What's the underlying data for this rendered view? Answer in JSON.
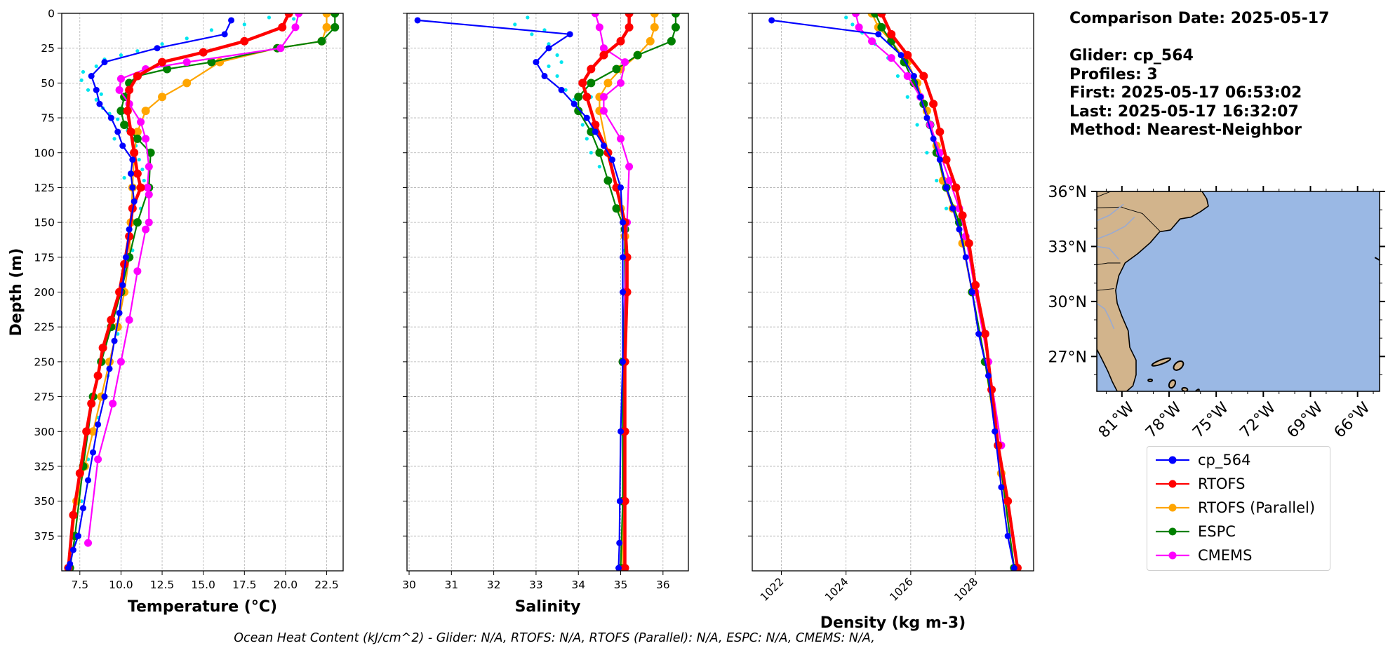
{
  "info": {
    "comparison_date": "Comparison Date: 2025-05-17",
    "glider": "Glider: cp_564",
    "profiles": "Profiles: 3",
    "first": "First: 2025-05-17 06:53:02",
    "last": "Last: 2025-05-17 16:32:07",
    "method": "Method: Nearest-Neighbor"
  },
  "footer": "Ocean Heat Content (kJ/cm^2) - Glider: N/A,  RTOFS: N/A,  RTOFS (Parallel): N/A,  ESPC: N/A,  CMEMS: N/A,",
  "colors": {
    "glider_obs": "#00e5ee",
    "cp_564": "#0000ff",
    "RTOFS": "#ff0000",
    "RTOFS (Parallel)": "#ffa500",
    "ESPC": "#008000",
    "CMEMS": "#ff00ff",
    "land": "#d2b48c",
    "ocean": "#9ab8e4"
  },
  "legend": [
    "cp_564",
    "RTOFS",
    "RTOFS (Parallel)",
    "ESPC",
    "CMEMS"
  ],
  "chart_data": [
    {
      "type": "line",
      "xlabel": "Temperature (°C)",
      "ylabel": "Depth (m)",
      "xlim": [
        6.4,
        23.5
      ],
      "ylim": [
        400,
        0
      ],
      "xticks": [
        7.5,
        10.0,
        12.5,
        15.0,
        17.5,
        20.0,
        22.5
      ],
      "xtick_labels": [
        "7.5",
        "10.0",
        "12.5",
        "15.0",
        "17.5",
        "20.0",
        "22.5"
      ],
      "yticks": [
        0,
        25,
        50,
        75,
        100,
        125,
        150,
        175,
        200,
        225,
        250,
        275,
        300,
        325,
        350,
        375
      ],
      "grid": true,
      "series": [
        {
          "name": "cp_564",
          "x": [
            16.7,
            16.3,
            12.2,
            9.0,
            8.2,
            8.5,
            8.7,
            9.4,
            9.8,
            10.1,
            10.7,
            10.6,
            10.7,
            10.8,
            10.5,
            10.3,
            10.1,
            9.9,
            9.6,
            9.3,
            9.0,
            8.6,
            8.3,
            8.0,
            7.7,
            7.4,
            7.1,
            6.9,
            6.8
          ],
          "y": [
            5,
            15,
            25,
            35,
            45,
            55,
            65,
            75,
            85,
            95,
            105,
            115,
            125,
            135,
            155,
            175,
            195,
            215,
            235,
            255,
            275,
            295,
            315,
            335,
            355,
            375,
            385,
            395,
            398
          ]
        },
        {
          "name": "RTOFS",
          "x": [
            20.2,
            19.8,
            17.5,
            15.0,
            12.5,
            11.0,
            10.5,
            10.4,
            10.6,
            10.8,
            11.0,
            11.2,
            10.7,
            10.5,
            10.2,
            9.9,
            9.4,
            8.9,
            8.6,
            8.2,
            7.9,
            7.5,
            7.1,
            6.8
          ],
          "y": [
            0,
            10,
            20,
            28,
            35,
            45,
            55,
            70,
            85,
            100,
            115,
            125,
            140,
            160,
            180,
            200,
            220,
            240,
            260,
            280,
            300,
            330,
            360,
            398
          ]
        },
        {
          "name": "RTOFS (Parallel)",
          "x": [
            22.5,
            22.5,
            22.2,
            19.5,
            16.0,
            14.0,
            12.5,
            11.5,
            11.0,
            10.8,
            10.7,
            10.6,
            10.5,
            10.2,
            9.8,
            9.3,
            8.8,
            8.3,
            7.8,
            7.3,
            6.8
          ],
          "y": [
            0,
            10,
            20,
            25,
            35,
            50,
            60,
            70,
            85,
            100,
            125,
            150,
            175,
            200,
            225,
            250,
            275,
            300,
            325,
            350,
            398
          ]
        },
        {
          "name": "ESPC",
          "x": [
            23.0,
            23.0,
            22.2,
            19.5,
            15.5,
            12.8,
            11.0,
            10.5,
            10.2,
            10.0,
            10.2,
            11.0,
            11.8,
            11.7,
            11.0,
            10.5,
            10.0,
            9.4,
            8.8,
            8.3,
            7.7,
            7.2,
            6.9
          ],
          "y": [
            0,
            10,
            20,
            25,
            35,
            40,
            45,
            50,
            60,
            70,
            80,
            90,
            100,
            125,
            150,
            175,
            200,
            225,
            250,
            275,
            325,
            375,
            398
          ]
        },
        {
          "name": "CMEMS",
          "x": [
            20.8,
            20.6,
            19.7,
            14.0,
            11.5,
            10.0,
            9.9,
            10.5,
            11.2,
            11.5,
            11.7,
            11.6,
            11.7,
            11.7,
            11.5,
            11.0,
            10.5,
            10.0,
            9.5,
            8.6,
            8.0
          ],
          "y": [
            0,
            10,
            25,
            35,
            40,
            47,
            55,
            65,
            78,
            90,
            110,
            125,
            130,
            150,
            155,
            185,
            220,
            250,
            280,
            320,
            380
          ]
        }
      ],
      "observations": {
        "name": "glider_obs",
        "x": [
          19.0,
          20.5,
          17.5,
          15.5,
          14.0,
          12.5,
          11.0,
          10.0,
          9.0,
          8.5,
          7.7,
          7.6,
          8.0,
          8.5,
          8.9,
          9.3,
          9.8,
          10.4,
          10.9,
          11.1,
          11.3,
          11.4,
          11.2,
          10.7,
          10.3,
          9.8,
          9.2,
          8.6,
          8.0,
          7.6,
          7.2,
          8.8,
          9.6,
          10.2
        ],
        "y": [
          3,
          4,
          8,
          12,
          18,
          22,
          27,
          30,
          33,
          38,
          42,
          48,
          55,
          62,
          68,
          72,
          76,
          84,
          95,
          105,
          112,
          120,
          140,
          170,
          200,
          230,
          260,
          290,
          320,
          350,
          380,
          58,
          90,
          118
        ]
      }
    },
    {
      "type": "line",
      "xlabel": "Salinity",
      "xlim": [
        29.95,
        36.6
      ],
      "ylim": [
        400,
        0
      ],
      "xticks": [
        30,
        31,
        32,
        33,
        34,
        35,
        36
      ],
      "xtick_labels": [
        "30",
        "31",
        "32",
        "33",
        "34",
        "35",
        "36"
      ],
      "grid": true,
      "series": [
        {
          "name": "cp_564",
          "x": [
            30.2,
            33.8,
            33.3,
            33.0,
            33.2,
            33.6,
            33.9,
            34.2,
            34.4,
            34.6,
            34.8,
            35.0,
            35.05,
            35.05,
            35.05,
            35.05,
            35.0,
            34.98,
            34.97,
            34.95
          ],
          "y": [
            5,
            15,
            25,
            35,
            45,
            55,
            65,
            75,
            85,
            95,
            105,
            125,
            150,
            175,
            200,
            250,
            300,
            350,
            380,
            398
          ]
        },
        {
          "name": "RTOFS",
          "x": [
            35.2,
            35.2,
            35.0,
            34.6,
            34.3,
            34.1,
            34.2,
            34.4,
            34.7,
            34.9,
            35.1,
            35.15,
            35.15,
            35.1,
            35.1,
            35.1,
            35.1
          ],
          "y": [
            0,
            10,
            20,
            30,
            40,
            50,
            60,
            80,
            100,
            125,
            150,
            175,
            200,
            250,
            300,
            350,
            398
          ]
        },
        {
          "name": "RTOFS (Parallel)",
          "x": [
            35.8,
            35.8,
            35.7,
            35.4,
            35.0,
            34.7,
            34.5,
            34.5,
            34.7,
            35.0,
            35.1,
            35.1,
            35.05,
            35.05,
            35.05
          ],
          "y": [
            0,
            10,
            20,
            30,
            40,
            50,
            60,
            70,
            100,
            140,
            160,
            200,
            250,
            300,
            398
          ]
        },
        {
          "name": "ESPC",
          "x": [
            36.3,
            36.3,
            36.2,
            35.4,
            34.9,
            34.3,
            34.0,
            34.0,
            34.3,
            34.5,
            34.7,
            34.9,
            35.1,
            35.1,
            35.05,
            35.05,
            35.0
          ],
          "y": [
            0,
            10,
            20,
            30,
            40,
            50,
            60,
            70,
            85,
            100,
            120,
            140,
            155,
            200,
            250,
            350,
            398
          ]
        },
        {
          "name": "CMEMS",
          "x": [
            34.4,
            34.5,
            34.6,
            35.1,
            35.0,
            34.6,
            34.6,
            35.0,
            35.2,
            35.15,
            35.1,
            35.1,
            35.1,
            35.1
          ],
          "y": [
            0,
            10,
            25,
            35,
            50,
            60,
            70,
            90,
            110,
            150,
            200,
            250,
            300,
            398
          ]
        }
      ],
      "observations": {
        "name": "glider_obs",
        "x": [
          32.8,
          32.5,
          32.9,
          33.3,
          33.5,
          33.3,
          33.5,
          33.7,
          33.9,
          34.0,
          34.1,
          34.2,
          34.3,
          34.5,
          34.7,
          35.0,
          35.1,
          35.2,
          35.1,
          33.2,
          33.6,
          34.3
        ],
        "y": [
          3,
          8,
          15,
          22,
          30,
          38,
          45,
          55,
          62,
          70,
          80,
          90,
          100,
          110,
          120,
          140,
          170,
          200,
          220,
          12,
          35,
          60
        ]
      }
    },
    {
      "type": "line",
      "xlabel": "Density (kg m-3)",
      "xlim": [
        1021.1,
        1029.8
      ],
      "ylim": [
        400,
        0
      ],
      "xticks": [
        1022,
        1024,
        1026,
        1028
      ],
      "xtick_labels": [
        "1022",
        "1024",
        "1026",
        "1028"
      ],
      "grid": true,
      "series": [
        {
          "name": "cp_564",
          "x": [
            1021.7,
            1025.0,
            1025.7,
            1026.1,
            1026.3,
            1026.5,
            1026.7,
            1026.9,
            1027.1,
            1027.3,
            1027.5,
            1027.7,
            1027.9,
            1028.1,
            1028.4,
            1028.6,
            1028.8,
            1029.0,
            1029.2
          ],
          "y": [
            5,
            15,
            30,
            45,
            60,
            75,
            90,
            105,
            125,
            140,
            155,
            175,
            200,
            230,
            260,
            300,
            340,
            375,
            398
          ]
        },
        {
          "name": "RTOFS",
          "x": [
            1025.1,
            1025.4,
            1025.9,
            1026.4,
            1026.7,
            1026.9,
            1027.1,
            1027.4,
            1027.6,
            1027.8,
            1028.0,
            1028.3,
            1028.5,
            1028.7,
            1029.0,
            1029.3
          ],
          "y": [
            0,
            15,
            30,
            45,
            65,
            85,
            105,
            125,
            145,
            165,
            195,
            230,
            270,
            310,
            350,
            398
          ]
        },
        {
          "name": "RTOFS (Parallel)",
          "x": [
            1024.8,
            1025.0,
            1025.4,
            1025.9,
            1026.2,
            1026.5,
            1026.8,
            1027.0,
            1027.3,
            1027.6,
            1027.9,
            1028.3,
            1028.8,
            1029.2
          ],
          "y": [
            0,
            10,
            20,
            35,
            50,
            70,
            95,
            120,
            140,
            165,
            200,
            250,
            330,
            398
          ]
        },
        {
          "name": "ESPC",
          "x": [
            1024.9,
            1025.1,
            1025.4,
            1025.8,
            1026.1,
            1026.4,
            1026.6,
            1026.8,
            1027.1,
            1027.5,
            1027.9,
            1028.3,
            1028.7,
            1029.2
          ],
          "y": [
            0,
            10,
            20,
            35,
            50,
            65,
            80,
            100,
            125,
            150,
            200,
            250,
            310,
            398
          ]
        },
        {
          "name": "CMEMS",
          "x": [
            1024.3,
            1024.4,
            1024.8,
            1025.4,
            1025.9,
            1026.3,
            1026.6,
            1026.9,
            1027.2,
            1027.5,
            1027.7,
            1028.0,
            1028.4,
            1028.8
          ],
          "y": [
            0,
            10,
            20,
            32,
            45,
            60,
            80,
            100,
            120,
            140,
            160,
            200,
            250,
            310
          ]
        }
      ],
      "observations": {
        "name": "glider_obs",
        "x": [
          1024.0,
          1024.2,
          1024.5,
          1024.9,
          1025.3,
          1025.6,
          1025.9,
          1026.2,
          1026.5,
          1026.8,
          1027.1
        ],
        "y": [
          3,
          8,
          14,
          22,
          32,
          45,
          60,
          80,
          100,
          120,
          140
        ]
      }
    }
  ],
  "map": {
    "lat_labels": [
      "36°N",
      "33°N",
      "30°N",
      "27°N"
    ],
    "lat_values": [
      36,
      33,
      30,
      27
    ],
    "lon_labels": [
      "81°W",
      "78°W",
      "75°W",
      "72°W",
      "69°W",
      "66°W"
    ],
    "lon_values": [
      -81,
      -78,
      -75,
      -72,
      -69,
      -66
    ],
    "extent": {
      "lon_min": -82.6,
      "lon_max": -64.6,
      "lat_min": 25.1,
      "lat_max": 36.0
    }
  }
}
